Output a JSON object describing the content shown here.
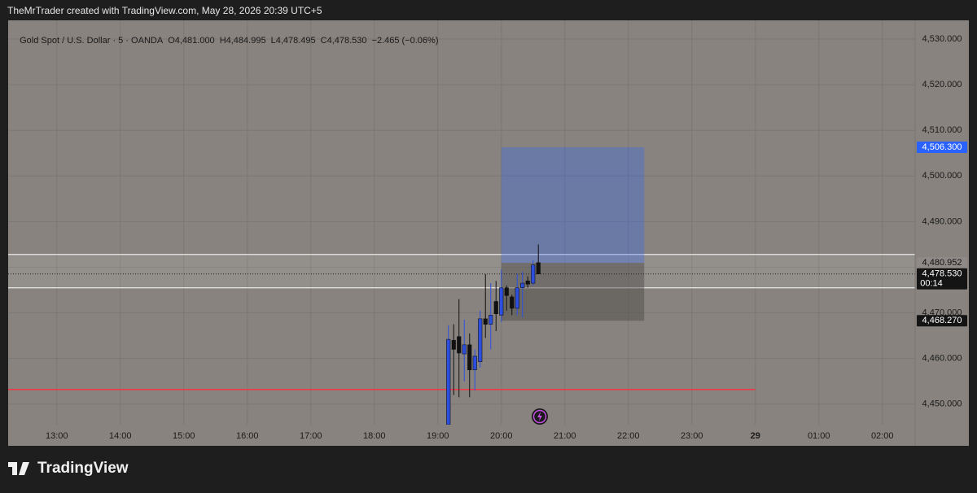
{
  "watermark": "TheMrTrader created with TradingView.com, May 28, 2026 20:39 UTC+5",
  "footer_logo": "TradingView",
  "chart_data": {
    "type": "candlestick",
    "legend_symbol": "Gold Spot / U.S. Dollar · 5 · OANDA",
    "legend_values": [
      "O4,481.000",
      "H4,484.995",
      "L4,478.495",
      "C4,478.530",
      "−2.465 (−0.06%)"
    ],
    "x": [
      1150,
      1155,
      1160,
      1165,
      1170,
      1175,
      1180,
      1185,
      1190,
      1195,
      1200,
      1205,
      1210,
      1215,
      1220,
      1225,
      1230,
      1235
    ],
    "open": [
      4445.5,
      4464.0,
      4464.8,
      4461.0,
      4463.0,
      4457.5,
      4459.3,
      4468.7,
      4467.5,
      4472.5,
      4469.5,
      4475.5,
      4473.5,
      4471.0,
      4475.5,
      4477.0,
      4476.5,
      4481.0
    ],
    "high": [
      4467.3,
      4467.5,
      4473.0,
      4468.5,
      4465.5,
      4462.0,
      4470.5,
      4478.5,
      4476.5,
      4477.0,
      4479.5,
      4476.0,
      4474.0,
      4478.5,
      4479.0,
      4478.0,
      4481.5,
      4484.995
    ],
    "low": [
      4444.0,
      4452.0,
      4451.5,
      4455.0,
      4451.5,
      4453.0,
      4458.0,
      4464.5,
      4462.0,
      4466.0,
      4468.0,
      4470.5,
      4469.5,
      4469.5,
      4469.0,
      4475.5,
      4476.0,
      4478.495
    ],
    "close": [
      4464.2,
      4462.0,
      4461.2,
      4463.0,
      4457.5,
      4460.5,
      4468.7,
      4467.5,
      4469.5,
      4469.8,
      4475.5,
      4473.8,
      4471.0,
      4475.5,
      4476.5,
      4476.3,
      4480.5,
      4478.53
    ],
    "up_color": "#2d4fe0",
    "down_color": "#111111",
    "xlim": [
      734,
      1591
    ],
    "xticks": [
      {
        "value": 780,
        "label": "13:00"
      },
      {
        "value": 840,
        "label": "14:00"
      },
      {
        "value": 900,
        "label": "15:00"
      },
      {
        "value": 960,
        "label": "16:00"
      },
      {
        "value": 1020,
        "label": "17:00"
      },
      {
        "value": 1080,
        "label": "18:00"
      },
      {
        "value": 1140,
        "label": "19:00"
      },
      {
        "value": 1200,
        "label": "20:00"
      },
      {
        "value": 1260,
        "label": "21:00"
      },
      {
        "value": 1320,
        "label": "22:00"
      },
      {
        "value": 1380,
        "label": "23:00"
      },
      {
        "value": 1440,
        "label": "29"
      },
      {
        "value": 1500,
        "label": "01:00"
      },
      {
        "value": 1560,
        "label": "02:00"
      }
    ],
    "ylim": [
      4445.5,
      4534.1
    ],
    "yticks": [
      {
        "value": 4450,
        "label": "4,450.000"
      },
      {
        "value": 4460,
        "label": "4,460.000"
      },
      {
        "value": 4470,
        "label": "4,470.000"
      },
      {
        "value": 4480,
        "label": "4,480.000"
      },
      {
        "value": 4490,
        "label": "4,490.000"
      },
      {
        "value": 4500,
        "label": "4,500.000"
      },
      {
        "value": 4510,
        "label": "4,510.000"
      },
      {
        "value": 4520,
        "label": "4,520.000"
      },
      {
        "value": 4530,
        "label": "4,530.000"
      }
    ],
    "grid": true,
    "horizontal_line": {
      "value": 4453.2,
      "color": "#f23645"
    },
    "band": {
      "values": [
        4482.8,
        4475.5
      ],
      "color": "#e8e8e8"
    },
    "position": {
      "start": 1200,
      "end": 1335,
      "target": {
        "value": 4506.3,
        "label": "4,506.300",
        "color": "#2962ff"
      },
      "entry": {
        "value": 4480.952,
        "label": "4,480.952"
      },
      "stop": {
        "value": 4468.27,
        "label": "4,468.270"
      }
    },
    "price_line": {
      "value": 4478.53,
      "label": "4,478.530",
      "countdown": "00:14"
    }
  }
}
